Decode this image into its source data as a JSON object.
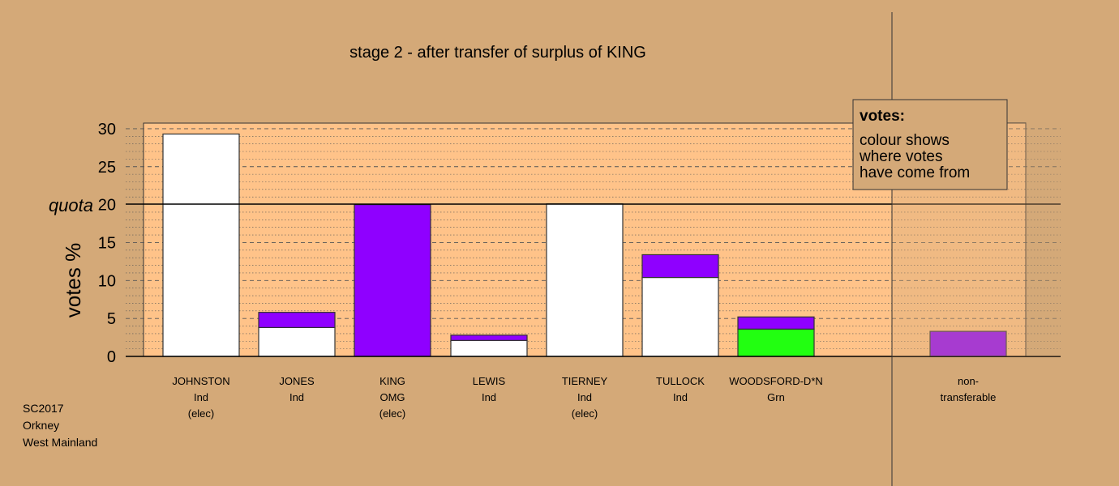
{
  "chart_data": {
    "type": "bar",
    "title": "stage 2 - after transfer of surplus of KING",
    "ylabel": "votes %",
    "ylim": [
      0,
      30.8
    ],
    "yticks": [
      0,
      5,
      10,
      15,
      20,
      25,
      30
    ],
    "quota": {
      "label": "quota",
      "value": 20
    },
    "grid": true,
    "categories": [
      {
        "lines": [
          "JOHNSTON",
          "Ind",
          "(elec)"
        ]
      },
      {
        "lines": [
          "JONES",
          "Ind"
        ]
      },
      {
        "lines": [
          "KING",
          "OMG",
          "(elec)"
        ]
      },
      {
        "lines": [
          "LEWIS",
          "Ind"
        ]
      },
      {
        "lines": [
          "TIERNEY",
          "Ind",
          "(elec)"
        ]
      },
      {
        "lines": [
          "TULLOCK",
          "Ind"
        ]
      },
      {
        "lines": [
          "WOODSFORD-D*N",
          "Grn"
        ]
      },
      {
        "lines": [
          "non-",
          "transferable"
        ]
      }
    ],
    "bars": [
      {
        "segments": [
          {
            "value": 29.3,
            "color": "#ffffff"
          }
        ]
      },
      {
        "segments": [
          {
            "value": 3.8,
            "color": "#ffffff"
          },
          {
            "value": 2.0,
            "color": "#8f00ff"
          }
        ]
      },
      {
        "segments": [
          {
            "value": 20.0,
            "color": "#8f00ff"
          }
        ]
      },
      {
        "segments": [
          {
            "value": 2.1,
            "color": "#ffffff"
          },
          {
            "value": 0.7,
            "color": "#8f00ff"
          }
        ]
      },
      {
        "segments": [
          {
            "value": 20.1,
            "color": "#ffffff"
          }
        ]
      },
      {
        "segments": [
          {
            "value": 10.4,
            "color": "#ffffff"
          },
          {
            "value": 3.0,
            "color": "#8f00ff"
          }
        ]
      },
      {
        "segments": [
          {
            "value": 3.6,
            "color": "#22ff11"
          },
          {
            "value": 1.6,
            "color": "#8f00ff"
          }
        ]
      },
      {
        "segments": [
          {
            "value": 3.3,
            "color": "#8f00ff"
          }
        ]
      }
    ],
    "legend": {
      "title": "votes:",
      "lines": [
        "colour shows",
        "where votes",
        "have come from"
      ],
      "placement": "top-right"
    }
  },
  "footer": [
    "SC2017",
    "Orkney",
    "West Mainland"
  ],
  "colors": {
    "background": "#d4a978",
    "plot_area": "#ffc389",
    "elected_or_own": "#ffffff",
    "king_transfer": "#8f00ff",
    "green_party": "#22ff11"
  }
}
